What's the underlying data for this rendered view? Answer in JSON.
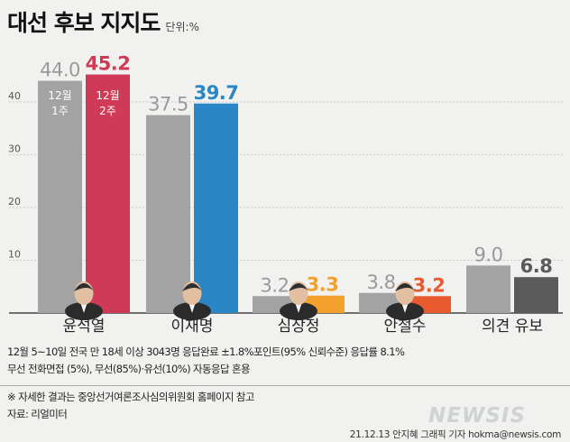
{
  "title": "대선 후보 지지도",
  "unit": "단위:%",
  "chart_data": {
    "type": "bar",
    "categories": [
      "윤석열",
      "이재명",
      "심상정",
      "안철수",
      "의견 유보"
    ],
    "series": [
      {
        "name": "12월 1주",
        "values": [
          44.0,
          37.5,
          3.2,
          3.8,
          9.0
        ],
        "labels": [
          "44.0",
          "37.5",
          "3.2",
          "3.8",
          "9.0"
        ]
      },
      {
        "name": "12월 2주",
        "values": [
          45.2,
          39.7,
          3.3,
          3.2,
          6.8
        ],
        "labels": [
          "45.2",
          "39.7",
          "3.3",
          "3.2",
          "6.8"
        ]
      }
    ],
    "legend_in_bars": [
      {
        "line1": "12월",
        "line2": "1주"
      },
      {
        "line1": "12월",
        "line2": "2주"
      }
    ],
    "yticks": [
      10,
      20,
      30,
      40
    ],
    "ytick_labels": [
      "10",
      "20",
      "30",
      "40"
    ],
    "ylim": [
      0,
      50
    ],
    "grid": true,
    "colors": {
      "week1": "#a3a3a3",
      "week2": [
        "#cf3b56",
        "#2a86c5",
        "#f2a12e",
        "#ea5a2f",
        "#5b5b5b"
      ]
    }
  },
  "notes": {
    "line1": "12월 5~10일 전국 만 18세 이상 3043명 응답완료 ±1.8%포인트(95% 신뢰수준) 응답률 8.1%",
    "line2": "무선 전화면접 (5%), 무선(85%)·유선(10%) 자동응답 혼용"
  },
  "footnote": {
    "line1": "※ 자세한 결과는 중앙선거여론조사심의위원회 홈페이지 참고",
    "line2": "자료: 리얼미터"
  },
  "credit": "21.12.13 안지혜 그래픽 기자 hokma@newsis.com",
  "logo": "NEWSIS"
}
